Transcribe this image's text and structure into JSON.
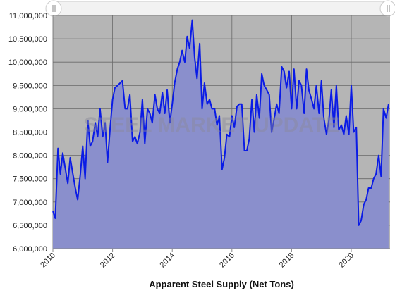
{
  "chart_data": {
    "type": "area",
    "title": "Apparent Steel Supply (Net Tons)",
    "watermark": "STEEL MARKET UPDATE",
    "x": [
      2010,
      2010.08,
      2010.17,
      2010.25,
      2010.33,
      2010.42,
      2010.5,
      2010.58,
      2010.67,
      2010.75,
      2010.83,
      2010.92,
      2011,
      2011.08,
      2011.17,
      2011.25,
      2011.33,
      2011.42,
      2011.5,
      2011.58,
      2011.67,
      2011.75,
      2011.83,
      2011.92,
      2012,
      2012.08,
      2012.17,
      2012.25,
      2012.33,
      2012.42,
      2012.5,
      2012.58,
      2012.67,
      2012.75,
      2012.83,
      2012.92,
      2013,
      2013.08,
      2013.17,
      2013.25,
      2013.33,
      2013.42,
      2013.5,
      2013.58,
      2013.67,
      2013.75,
      2013.83,
      2013.92,
      2014,
      2014.08,
      2014.17,
      2014.25,
      2014.33,
      2014.42,
      2014.5,
      2014.58,
      2014.67,
      2014.75,
      2014.83,
      2014.92,
      2015,
      2015.08,
      2015.17,
      2015.25,
      2015.33,
      2015.42,
      2015.5,
      2015.58,
      2015.67,
      2015.75,
      2015.83,
      2015.92,
      2016,
      2016.08,
      2016.17,
      2016.25,
      2016.33,
      2016.42,
      2016.5,
      2016.58,
      2016.67,
      2016.75,
      2016.83,
      2016.92,
      2017,
      2017.08,
      2017.17,
      2017.25,
      2017.33,
      2017.42,
      2017.5,
      2017.58,
      2017.67,
      2017.75,
      2017.83,
      2017.92,
      2018,
      2018.08,
      2018.17,
      2018.25,
      2018.33,
      2018.42,
      2018.5,
      2018.58,
      2018.67,
      2018.75,
      2018.83,
      2018.92,
      2019,
      2019.08,
      2019.17,
      2019.25,
      2019.33,
      2019.42,
      2019.5,
      2019.58,
      2019.67,
      2019.75,
      2019.83,
      2019.92,
      2020,
      2020.08,
      2020.17,
      2020.25,
      2020.33,
      2020.42,
      2020.5,
      2020.58,
      2020.67,
      2020.75,
      2020.83,
      2020.92,
      2021,
      2021.08,
      2021.17,
      2021.25
    ],
    "series": [
      {
        "color": "#0a1be6",
        "fill": "#8a8fcc",
        "values": [
          6800000,
          6650000,
          8150000,
          7600000,
          8050000,
          7700000,
          7400000,
          7950000,
          7600000,
          7300000,
          7050000,
          7600000,
          8200000,
          7500000,
          8750000,
          8200000,
          8300000,
          8700000,
          8400000,
          9000000,
          8400000,
          8700000,
          7850000,
          8600000,
          9200000,
          9450000,
          9500000,
          9550000,
          9600000,
          9000000,
          9000000,
          9300000,
          8300000,
          8400000,
          8250000,
          8500000,
          9200000,
          8250000,
          9000000,
          8900000,
          8700000,
          9300000,
          9000000,
          8900000,
          9350000,
          8900000,
          9400000,
          8700000,
          9100000,
          9550000,
          9850000,
          10000000,
          10250000,
          10000000,
          10550000,
          10300000,
          10900000,
          10100000,
          9650000,
          10400000,
          9000000,
          9550000,
          9100000,
          9200000,
          9000000,
          9000000,
          8650000,
          8850000,
          7700000,
          7950000,
          8450000,
          8400000,
          8850000,
          8600000,
          9050000,
          9100000,
          9100000,
          8100000,
          8100000,
          8350000,
          9200000,
          8500000,
          9300000,
          8800000,
          9750000,
          9500000,
          9400000,
          9300000,
          8500000,
          8800000,
          9100000,
          8900000,
          9900000,
          9800000,
          9450000,
          9800000,
          9000000,
          9850000,
          9000000,
          9600000,
          9500000,
          8900000,
          9850000,
          9400000,
          9200000,
          9000000,
          9500000,
          8900000,
          9600000,
          8800000,
          8450000,
          8750000,
          9400000,
          8600000,
          9500000,
          8550000,
          8650000,
          8450000,
          8850000,
          8450000,
          9500000,
          8500000,
          8600000,
          6500000,
          6600000,
          6950000,
          7050000,
          7300000,
          7300000,
          7500000,
          7600000,
          8000000,
          7550000,
          9000000,
          8800000,
          9100000
        ]
      }
    ],
    "xlim": [
      2010,
      2021.3
    ],
    "xticks": [
      2010,
      2012,
      2014,
      2016,
      2018,
      2020
    ],
    "ylim": [
      6000000,
      11000000
    ],
    "yticks": [
      {
        "value": 6000000,
        "label": "6,000,000"
      },
      {
        "value": 6500000,
        "label": "6,500,000"
      },
      {
        "value": 7000000,
        "label": "7,000,000"
      },
      {
        "value": 7500000,
        "label": "7,500,000"
      },
      {
        "value": 8000000,
        "label": "8,000,000"
      },
      {
        "value": 8500000,
        "label": "8,500,000"
      },
      {
        "value": 9000000,
        "label": "9,000,000"
      },
      {
        "value": 9500000,
        "label": "9,500,000"
      },
      {
        "value": 10000000,
        "label": "10,000,000"
      },
      {
        "value": 10500000,
        "label": "10,500,000"
      },
      {
        "value": 11000000,
        "label": "11,000,000"
      }
    ],
    "grid": true
  }
}
